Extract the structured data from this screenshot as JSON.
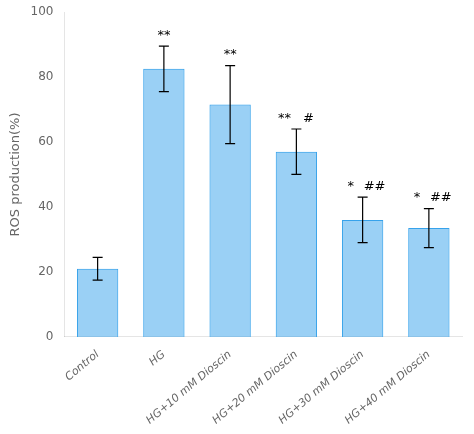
{
  "chart_data": {
    "type": "bar",
    "categories": [
      "Control",
      "HG",
      "HG+10 mM Dioscin",
      "HG+20 mM Dioscin",
      "HG+30 mM Dioscin",
      "HG+40 mM Dioscin"
    ],
    "values": [
      21.0,
      82.5,
      71.5,
      57.0,
      36.0,
      33.5
    ],
    "errors": [
      3.5,
      7.0,
      12.0,
      7.0,
      7.0,
      6.0
    ],
    "annotations": [
      {
        "category": "HG",
        "texts": [
          "**"
        ]
      },
      {
        "category": "HG+10 mM Dioscin",
        "texts": [
          "**"
        ]
      },
      {
        "category": "HG+20 mM Dioscin",
        "texts": [
          "**",
          "#"
        ]
      },
      {
        "category": "HG+30 mM Dioscin",
        "texts": [
          "*",
          "##"
        ]
      },
      {
        "category": "HG+40 mM Dioscin",
        "texts": [
          "*",
          "##"
        ]
      }
    ],
    "ylabel": "ROS production(%)",
    "ylim": [
      0,
      100
    ],
    "yticks": [
      0,
      20,
      40,
      60,
      80,
      100
    ],
    "grid": false
  }
}
